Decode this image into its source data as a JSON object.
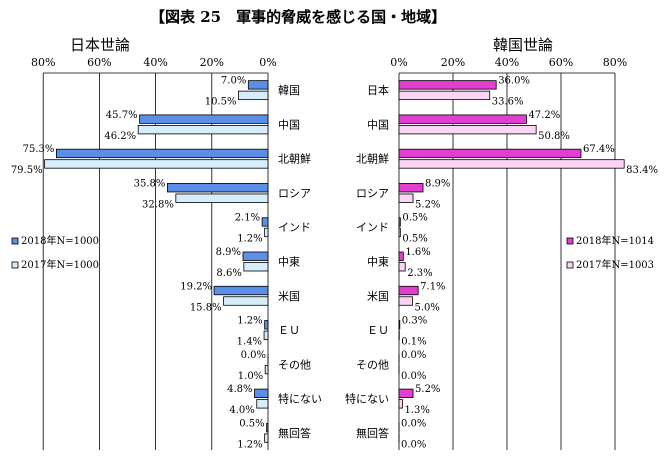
{
  "title": "【図表 25　軍事的脅威を感じる国・地域】",
  "colors": {
    "left_2018": "#5b8ee6",
    "left_2017": "#d6eefc",
    "right_2018": "#e23fd0",
    "right_2017": "#fbd6f4",
    "border": "#000000"
  },
  "chart_data": [
    {
      "type": "bar",
      "orientation": "horizontal",
      "direction": "reversed",
      "title": "日本世論",
      "xlim": [
        0,
        80
      ],
      "ticks": [
        "80%",
        "60%",
        "40%",
        "20%",
        "0%"
      ],
      "grid": true,
      "legend": "left-middle",
      "categories": [
        "韓国",
        "中国",
        "北朝鮮",
        "ロシア",
        "インド",
        "中東",
        "米国",
        "ＥＵ",
        "その他",
        "特にない",
        "無回答"
      ],
      "series": [
        {
          "name": "2018年N=1000",
          "values": [
            7.0,
            45.7,
            75.3,
            35.8,
            2.1,
            8.9,
            19.2,
            1.2,
            0.0,
            4.8,
            0.5
          ],
          "labels": [
            "7.0%",
            "45.7%",
            "75.3%",
            "35.8%",
            "2.1%",
            "8.9%",
            "19.2%",
            "1.2%",
            "0.0%",
            "4.8%",
            "0.5%"
          ]
        },
        {
          "name": "2017年N=1000",
          "values": [
            10.5,
            46.2,
            79.5,
            32.8,
            1.2,
            8.6,
            15.8,
            1.4,
            1.0,
            4.0,
            1.2
          ],
          "labels": [
            "10.5%",
            "46.2%",
            "79.5%",
            "32.8%",
            "1.2%",
            "8.6%",
            "15.8%",
            "1.4%",
            "1.0%",
            "4.0%",
            "1.2%"
          ]
        }
      ]
    },
    {
      "type": "bar",
      "orientation": "horizontal",
      "title": "韓国世論",
      "xlim": [
        0,
        80
      ],
      "ticks": [
        "0%",
        "20%",
        "40%",
        "60%",
        "80%"
      ],
      "grid": true,
      "legend": "right-middle",
      "categories": [
        "日本",
        "中国",
        "北朝鮮",
        "ロシア",
        "インド",
        "中東",
        "米国",
        "ＥＵ",
        "その他",
        "特にない",
        "無回答"
      ],
      "series": [
        {
          "name": "2018年N=1014",
          "values": [
            36.0,
            47.2,
            67.4,
            8.9,
            0.5,
            1.6,
            7.1,
            0.3,
            0.0,
            5.2,
            0.0
          ],
          "labels": [
            "36.0%",
            "47.2%",
            "67.4%",
            "8.9%",
            "0.5%",
            "1.6%",
            "7.1%",
            "0.3%",
            "0.0%",
            "5.2%",
            "0.0%"
          ]
        },
        {
          "name": "2017年N=1003",
          "values": [
            33.6,
            50.8,
            83.4,
            5.2,
            0.5,
            2.3,
            5.0,
            0.1,
            0.0,
            1.3,
            0.0
          ],
          "labels": [
            "33.6%",
            "50.8%",
            "83.4%",
            "5.2%",
            "0.5%",
            "2.3%",
            "5.0%",
            "0.1%",
            "0.0%",
            "1.3%",
            "0.0%"
          ]
        }
      ]
    }
  ]
}
